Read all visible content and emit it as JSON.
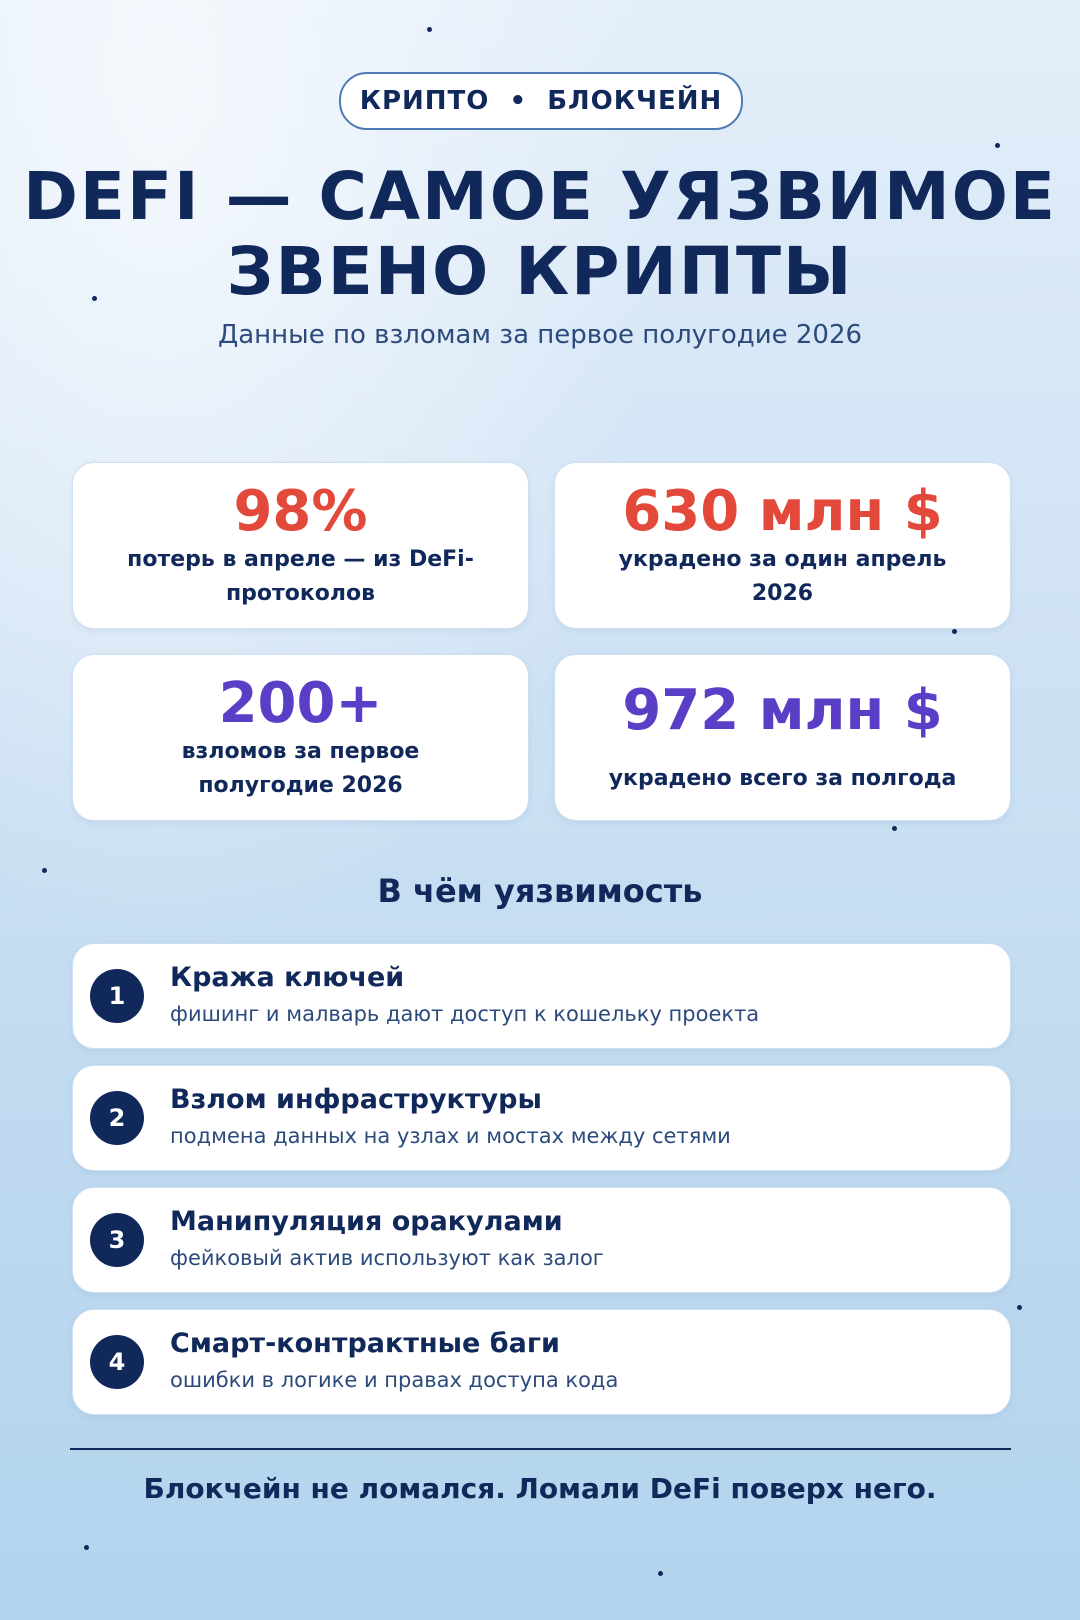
{
  "header": {
    "badge": "КРИПТО  •  БЛОКЧЕЙН",
    "title_lines": [
      "DEFI — САМОЕ УЯЗВИМОЕ",
      "ЗВЕНО КРИПТЫ"
    ],
    "subtitle": "Данные по взломам за первое полугодие 2026"
  },
  "stats": [
    {
      "value": "98%",
      "label": "потерь в апреле — из DeFi-протоколов",
      "color": "#e2493b"
    },
    {
      "value": "630 млн $",
      "label": "украдено за один апрель 2026",
      "color": "#e2493b"
    },
    {
      "value": "200+",
      "label": "взломов за первое полугодие 2026",
      "color": "#5a3fc6"
    },
    {
      "value": "972 млн $",
      "label": "украдено всего за полгода",
      "color": "#5a3fc6"
    }
  ],
  "section": {
    "title": "В чём уязвимость",
    "items": [
      {
        "number": "1",
        "title": "Кража ключей",
        "text": "фишинг и малварь дают доступ к кошельку проекта"
      },
      {
        "number": "2",
        "title": "Взлом инфраструктуры",
        "text": "подмена данных на узлах и мостах между сетями"
      },
      {
        "number": "3",
        "title": "Манипуляция оракулами",
        "text": "фейковый актив используют как залог"
      },
      {
        "number": "4",
        "title": "Смарт-контрактные баги",
        "text": "ошибки в логике и правах доступа кода"
      }
    ]
  },
  "footer": "Блокчейн не ломался. Ломали DeFi поверх него."
}
